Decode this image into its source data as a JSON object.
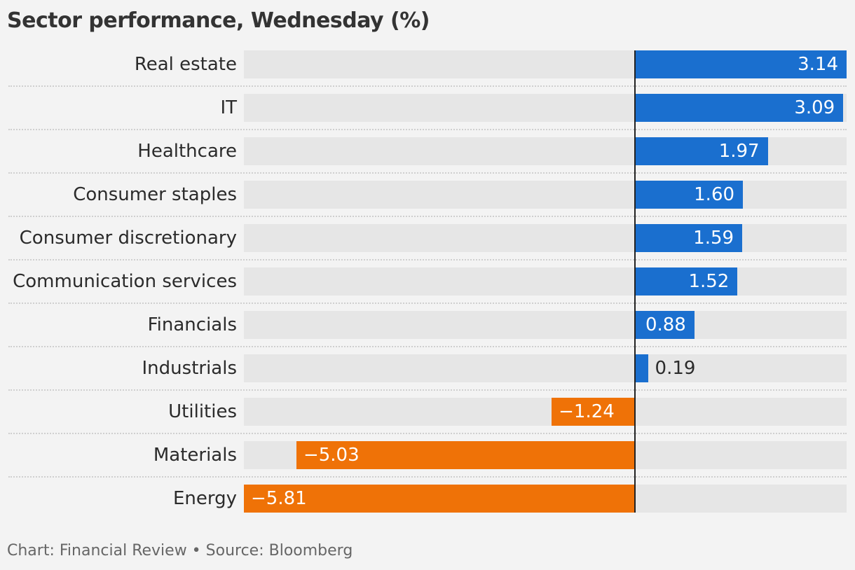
{
  "title": "Sector performance, Wednesday (%)",
  "footer": "Chart: Financial Review • Source: Bloomberg",
  "colors": {
    "positive": "#1a6fcf",
    "negative": "#ef7207",
    "track": "#e6e6e6",
    "zero_line": "#222222"
  },
  "chart_data": {
    "type": "bar",
    "orientation": "horizontal",
    "categories": [
      "Real estate",
      "IT",
      "Healthcare",
      "Consumer staples",
      "Consumer discretionary",
      "Communication services",
      "Financials",
      "Industrials",
      "Utilities",
      "Materials",
      "Energy"
    ],
    "values": [
      3.14,
      3.09,
      1.97,
      1.6,
      1.59,
      1.52,
      0.88,
      0.19,
      -1.24,
      -5.03,
      -5.81
    ],
    "value_labels": [
      "3.14",
      "3.09",
      "1.97",
      "1.60",
      "1.59",
      "1.52",
      "0.88",
      "0.19",
      "−1.24",
      "−5.03",
      "−5.81"
    ],
    "title": "Sector performance, Wednesday (%)",
    "xlim": [
      -5.81,
      3.14
    ],
    "grid": false,
    "legend": "none"
  }
}
